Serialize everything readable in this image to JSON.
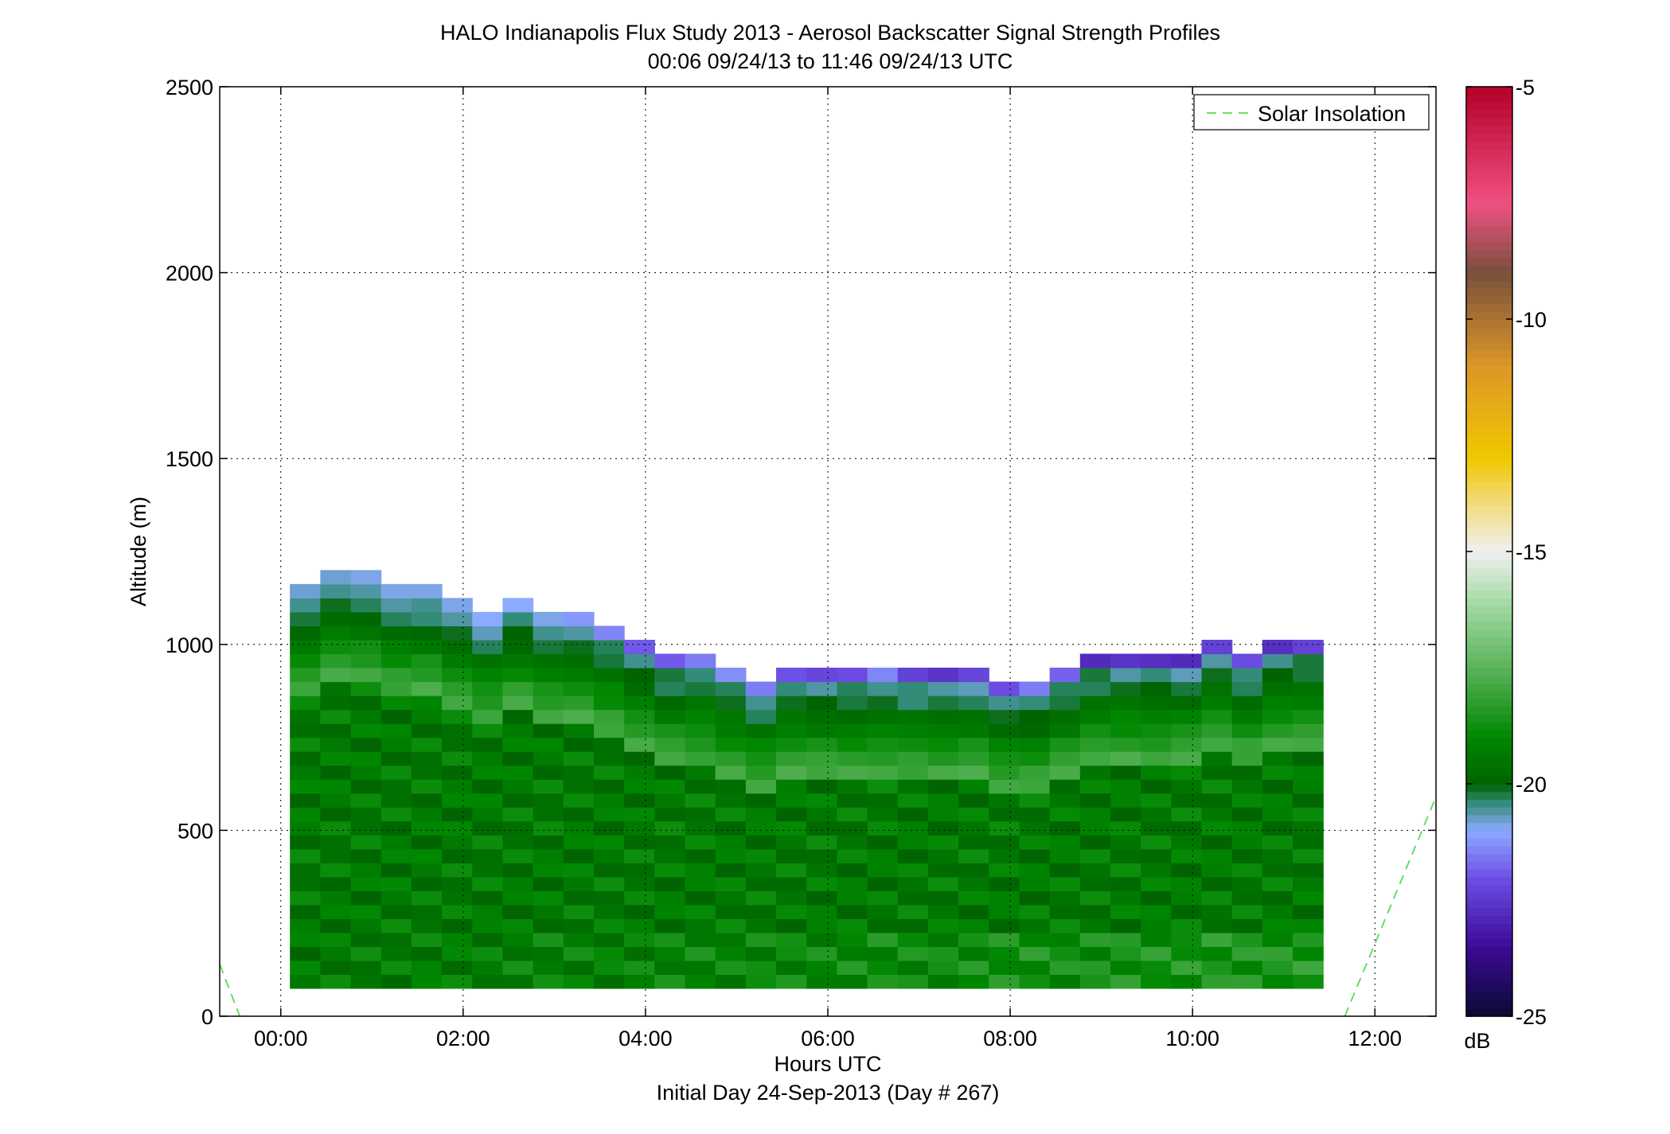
{
  "chart_data": {
    "type": "heatmap",
    "title": "HALO Indianapolis Flux Study 2013 - Aerosol Backscatter Signal Strength Profiles",
    "subtitle": "00:06 09/24/13 to 11:46 09/24/13  UTC",
    "xlabel": "Hours UTC",
    "xlabel2": "Initial Day 24-Sep-2013 (Day # 267)",
    "ylabel": "Altitude (m)",
    "xlim": [
      -0.67,
      12.67
    ],
    "ylim": [
      0,
      2500
    ],
    "x_ticks": [
      0,
      2,
      4,
      6,
      8,
      10,
      12
    ],
    "x_tick_labels": [
      "00:00",
      "02:00",
      "04:00",
      "06:00",
      "08:00",
      "10:00",
      "12:00"
    ],
    "y_ticks": [
      0,
      500,
      1000,
      1500,
      2000,
      2500
    ],
    "y_tick_labels": [
      "0",
      "500",
      "1000",
      "1500",
      "2000",
      "2500"
    ],
    "grid": true,
    "colorbar": {
      "label": "dB",
      "range": [
        -25,
        -5
      ],
      "ticks": [
        -25,
        -20,
        -15,
        -10,
        -5
      ],
      "tick_labels": [
        "-25",
        "-20",
        "-15",
        "-10",
        "-5"
      ]
    },
    "legend": {
      "position": "top-right",
      "entries": [
        "Solar Insolation"
      ],
      "color": "#55dd55"
    },
    "solar_insolation": {
      "segments": [
        {
          "x": [
            -0.67,
            -0.45
          ],
          "y": [
            140,
            0
          ]
        },
        {
          "x": [
            11.67,
            12.67
          ],
          "y": [
            0,
            590
          ]
        }
      ]
    },
    "heatmap": {
      "x_start": 0.1,
      "dx": 0.3333,
      "y_bottom": 75,
      "dy": 37.5,
      "max_top": [
        1150,
        1188,
        1188,
        1150,
        1150,
        1113,
        1075,
        1113,
        1075,
        1075,
        1038,
        1000,
        963,
        963,
        925,
        888,
        925,
        925,
        925,
        925,
        925,
        925,
        925,
        888,
        888,
        925,
        963,
        963,
        963,
        963,
        1000,
        963,
        1000,
        1000
      ],
      "grid_row_top_to_bottom_db": [
        [
          -20.8,
          -20.8,
          -20.9,
          -20.9,
          -20.9,
          -20.9,
          -21,
          -21,
          -20.9,
          -21.2,
          -21.4,
          -21.9,
          -21.9,
          -21.5,
          -21.3,
          -21.5,
          -22,
          -22.2,
          -22.1,
          -21.4,
          -22.3,
          -22.6,
          -22.2,
          -22.1,
          -21.5,
          -21.8,
          -22.8,
          -22.6,
          -22.7,
          -22.8,
          -22.3,
          -22.1,
          -22.7,
          -22.3
        ],
        [
          -20.5,
          -20.5,
          -20.6,
          -20.6,
          -20.5,
          -20.6,
          -20.7,
          -20.4,
          -20.5,
          -20.6,
          -20.3,
          -20.5,
          -20.2,
          -20.4,
          -20.3,
          -20.5,
          -20.4,
          -20.6,
          -20.3,
          -20.5,
          -20.4,
          -20.6,
          -20.7,
          -20.5,
          -20.4,
          -20.3,
          -20.2,
          -20.6,
          -20.4,
          -20.7,
          -20.6,
          -20.4,
          -20.5,
          -20.2
        ],
        [
          -20.2,
          -20.1,
          -20.3,
          -20.3,
          -20.4,
          -20.1,
          -20.3,
          -20,
          -20.2,
          -20.1,
          -20.2,
          -20,
          -20.3,
          -20.2,
          -20.1,
          -20.3,
          -20.1,
          -20,
          -20.2,
          -20.1,
          -20.4,
          -20.2,
          -20.3,
          -20.1,
          -20,
          -20.2,
          -20.3,
          -20.1,
          -20,
          -20.2,
          -20.1,
          -20.3,
          -20,
          -20.2
        ],
        [
          -19.9,
          -19.8,
          -19.9,
          -19.8,
          -19.9,
          -19.7,
          -19.6,
          -19.8,
          -19.6,
          -19.7,
          -19.6,
          -19.8,
          -19.9,
          -19.5,
          -19.4,
          -19.6,
          -19.5,
          -19.7,
          -19.8,
          -19.6,
          -19.5,
          -19.7,
          -19.6,
          -19.8,
          -19.9,
          -19.7,
          -19.6,
          -19.5,
          -19.7,
          -19.8,
          -19.6,
          -19.8,
          -19.7,
          -19.6
        ],
        [
          -19.4,
          -19.3,
          -19.5,
          -19.2,
          -19.4,
          -19.3,
          -19.1,
          -19.4,
          -19.2,
          -19.3,
          -19,
          -19.2,
          -19.4,
          -19.1,
          -19.3,
          -19,
          -19.2,
          -19.4,
          -19.3,
          -19.1,
          -19.2,
          -19.3,
          -19.4,
          -19.1,
          -19.2,
          -19.4,
          -19.3,
          -19,
          -19.2,
          -19.1,
          -19.3,
          -19.4,
          -19.2,
          -19.3
        ],
        [
          -18.9,
          -18.8,
          -18.7,
          -18.9,
          -18.6,
          -18.8,
          -18.7,
          -18.9,
          -18.6,
          -18.8,
          -18.9,
          -18.7,
          -18.6,
          -18.8,
          -18.9,
          -18.7,
          -18.8,
          -18.6,
          -18.9,
          -18.7,
          -18.8,
          -18.9,
          -18.6,
          -18.7,
          -18.8,
          -18.6,
          -18.7,
          -18.9,
          -18.8,
          -18.6,
          -18.7,
          -18.8,
          -18.9,
          -18.7
        ],
        [
          -18.4,
          -18.3,
          -18.5,
          -18.2,
          -18.4,
          -18.3,
          -18.5,
          -18.2,
          -18.4,
          -18.3,
          -18.1,
          -18.4,
          -18.2,
          -18.5,
          -18.3,
          -18.4,
          -18.2,
          -18.1,
          -18.3,
          -18.4,
          -18.2,
          -18.5,
          -18.3,
          -18.4,
          -18.1,
          -18.2,
          -18.3,
          -18.4,
          -18.5,
          -18.2,
          -18.3,
          -18.1,
          -18.4,
          -18.2
        ],
        [
          -18,
          -17.8,
          -17.9,
          -18.1,
          -17.7,
          -17.9,
          -18,
          -17.8,
          -17.9,
          -17.7,
          -18,
          -17.8,
          -17.9,
          -18.1,
          -17.8,
          -17.9,
          -17.7,
          -18,
          -17.8,
          -17.9,
          -18.1,
          -17.8,
          -17.7,
          -17.9,
          -18,
          -17.8,
          -17.9,
          -17.7,
          -18,
          -17.8,
          -17.9,
          -18.1,
          -17.8,
          -17.9
        ]
      ]
    }
  }
}
